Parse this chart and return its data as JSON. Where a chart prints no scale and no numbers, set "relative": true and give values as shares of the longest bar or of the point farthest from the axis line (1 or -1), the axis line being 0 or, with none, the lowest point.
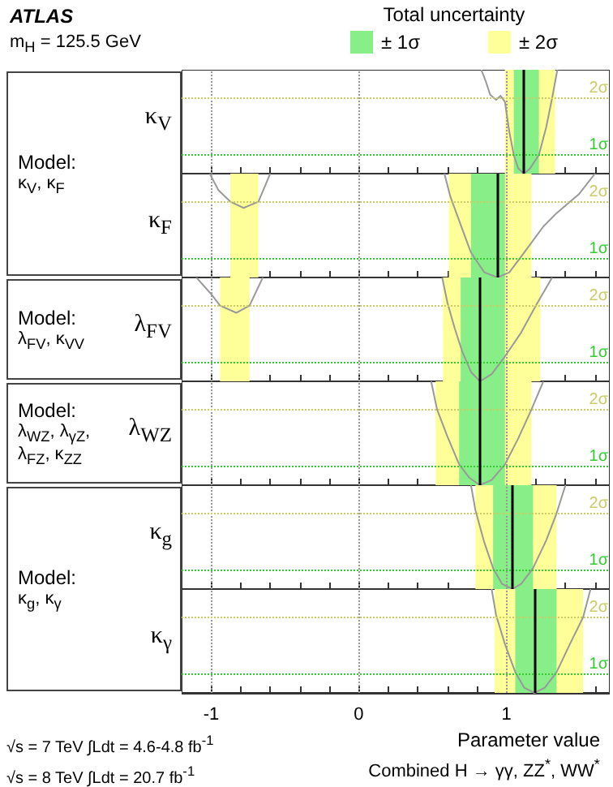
{
  "chart_data": [
    {
      "type": "line",
      "title": "ATLAS",
      "subtitle": "m$_{H}$ = 125.5 GeV",
      "legend_title": "Total uncertainty",
      "legend": "top",
      "ylabel": "κ$_{V}$",
      "annotations": [
        "Model:",
        "κ$_{V}$, κ$_{F}$"
      ],
      "color": "#999999",
      "marker": "none",
      "line_style": "solid",
      "relative": true,
      "x": [
        0.83,
        0.86,
        0.89,
        0.93,
        0.96,
        0.99,
        1.02,
        1.05,
        1.08,
        1.12,
        1.16,
        1.22,
        1.27,
        1.31,
        1.345
      ],
      "values": [
        1,
        0.89,
        0.76,
        0.71,
        0.75,
        0.69,
        0.4,
        0.18,
        0.05,
        0,
        0.05,
        0.18,
        0.45,
        0.73,
        1
      ],
      "xlim": [
        -1.2,
        1.7
      ],
      "xticks": [
        -1,
        {
          "value": -0.8,
          "label": null
        },
        {
          "value": -0.6,
          "label": null
        },
        {
          "value": -0.4,
          "label": null
        },
        {
          "value": -0.2,
          "label": null
        },
        0,
        {
          "value": 0.2,
          "label": null
        },
        {
          "value": 0.4,
          "label": null
        },
        {
          "value": 0.6,
          "label": null
        },
        {
          "value": 0.8,
          "label": null
        },
        1,
        {
          "value": 1.2,
          "label": null
        },
        {
          "value": 1.4,
          "label": null
        },
        {
          "value": 1.6,
          "label": null
        }
      ],
      "grid": "x",
      "tick_labels": false,
      "bands": [
        {
          "axis": "x",
          "from": 0.99,
          "to": 1.33,
          "color": "#ffff99",
          "label": "± 2σ"
        },
        {
          "axis": "x",
          "from": 1.05,
          "to": 1.22,
          "color": "#88ee88",
          "label": "± 1σ"
        }
      ],
      "ref_lines": [
        {
          "axis": "y",
          "value": 0.18,
          "label": "1σ",
          "color": "#33cc33",
          "line_style": "dotted"
        },
        {
          "axis": "y",
          "value": 0.73,
          "label": "2σ",
          "color": "#cccc66",
          "line_style": "dotted"
        },
        {
          "axis": "x",
          "value": 1.12,
          "color": "#000000",
          "line_style": "solid"
        }
      ]
    },
    {
      "type": "line",
      "ylabel": "κ$_{F}$",
      "color": "#999999",
      "marker": "none",
      "line_style": "solid",
      "relative": true,
      "x": [
        -1.01,
        -0.95,
        -0.87,
        -0.78,
        -0.68,
        -0.6,
        0,
        0.58,
        0.62,
        0.7,
        0.76,
        0.85,
        0.94,
        1.02,
        1.12,
        1.25,
        1.34,
        1.49,
        1.6
      ],
      "values": [
        1,
        0.84,
        0.73,
        0.67,
        0.73,
        1,
        null,
        1,
        0.78,
        0.47,
        0.24,
        0.05,
        0,
        0.05,
        0.24,
        0.49,
        0.62,
        0.8,
        1
      ],
      "xlim": [
        -1.2,
        1.7
      ],
      "xticks": [
        -1,
        {
          "value": -0.8,
          "label": null
        },
        {
          "value": -0.6,
          "label": null
        },
        {
          "value": -0.4,
          "label": null
        },
        {
          "value": -0.2,
          "label": null
        },
        0,
        {
          "value": 0.2,
          "label": null
        },
        {
          "value": 0.4,
          "label": null
        },
        {
          "value": 0.6,
          "label": null
        },
        {
          "value": 0.8,
          "label": null
        },
        1,
        {
          "value": 1.2,
          "label": null
        },
        {
          "value": 1.4,
          "label": null
        },
        {
          "value": 1.6,
          "label": null
        }
      ],
      "grid": "x",
      "tick_labels": false,
      "bands": [
        {
          "axis": "x",
          "from": -0.87,
          "to": -0.68,
          "color": "#ffff99"
        },
        {
          "axis": "x",
          "from": 0.61,
          "to": 1.17,
          "color": "#ffff99"
        },
        {
          "axis": "x",
          "from": 0.76,
          "to": 0.99,
          "color": "#88ee88"
        }
      ],
      "ref_lines": [
        {
          "axis": "y",
          "value": 0.18,
          "label": "1σ",
          "color": "#33cc33",
          "line_style": "dotted"
        },
        {
          "axis": "y",
          "value": 0.73,
          "label": "2σ",
          "color": "#cccc66",
          "line_style": "dotted"
        },
        {
          "axis": "x",
          "value": 0.94,
          "color": "#000000",
          "line_style": "solid"
        }
      ]
    },
    {
      "type": "line",
      "ylabel": "λ$_{FV}$",
      "annotations": [
        "Model:",
        "λ$_{FV}$, κ$_{VV}$"
      ],
      "color": "#999999",
      "marker": "none",
      "line_style": "solid",
      "relative": true,
      "x": [
        -1.1,
        -1.0,
        -0.94,
        -0.83,
        -0.74,
        -0.65,
        0,
        0.565,
        0.6,
        0.65,
        0.7,
        0.76,
        0.82,
        0.9,
        0.99,
        1.1,
        1.2,
        1.31
      ],
      "values": [
        1,
        0.84,
        0.73,
        0.66,
        0.73,
        1,
        null,
        1,
        0.76,
        0.51,
        0.29,
        0.09,
        0,
        0.07,
        0.24,
        0.47,
        0.73,
        1
      ],
      "xlim": [
        -1.2,
        1.7
      ],
      "xticks": [
        -1,
        {
          "value": -0.8,
          "label": null
        },
        {
          "value": -0.6,
          "label": null
        },
        {
          "value": -0.4,
          "label": null
        },
        {
          "value": -0.2,
          "label": null
        },
        0,
        {
          "value": 0.2,
          "label": null
        },
        {
          "value": 0.4,
          "label": null
        },
        {
          "value": 0.6,
          "label": null
        },
        {
          "value": 0.8,
          "label": null
        },
        1,
        {
          "value": 1.2,
          "label": null
        },
        {
          "value": 1.4,
          "label": null
        },
        {
          "value": 1.6,
          "label": null
        }
      ],
      "grid": "x",
      "tick_labels": false,
      "bands": [
        {
          "axis": "x",
          "from": -0.94,
          "to": -0.74,
          "color": "#ffff99"
        },
        {
          "axis": "x",
          "from": 0.57,
          "to": 1.23,
          "color": "#ffff99"
        },
        {
          "axis": "x",
          "from": 0.69,
          "to": 0.99,
          "color": "#88ee88"
        }
      ],
      "ref_lines": [
        {
          "axis": "y",
          "value": 0.18,
          "label": "1σ",
          "color": "#33cc33",
          "line_style": "dotted"
        },
        {
          "axis": "y",
          "value": 0.73,
          "label": "2σ",
          "color": "#cccc66",
          "line_style": "dotted"
        },
        {
          "axis": "x",
          "value": 0.82,
          "color": "#000000",
          "line_style": "solid"
        }
      ]
    },
    {
      "type": "line",
      "ylabel": "λ$_{WZ}$",
      "annotations": [
        "Model:",
        "λ$_{WZ}$, λ$_{γZ}$,",
        "λ$_{FZ}$, κ$_{ZZ}$"
      ],
      "color": "#999999",
      "marker": "none",
      "line_style": "solid",
      "relative": true,
      "x": [
        0.49,
        0.53,
        0.6,
        0.68,
        0.75,
        0.82,
        0.9,
        0.99,
        1.08,
        1.17,
        1.25
      ],
      "values": [
        1,
        0.73,
        0.47,
        0.2,
        0.07,
        0,
        0.05,
        0.2,
        0.45,
        0.73,
        1
      ],
      "xlim": [
        -1.2,
        1.7
      ],
      "xticks": [
        -1,
        {
          "value": -0.8,
          "label": null
        },
        {
          "value": -0.6,
          "label": null
        },
        {
          "value": -0.4,
          "label": null
        },
        {
          "value": -0.2,
          "label": null
        },
        0,
        {
          "value": 0.2,
          "label": null
        },
        {
          "value": 0.4,
          "label": null
        },
        {
          "value": 0.6,
          "label": null
        },
        {
          "value": 0.8,
          "label": null
        },
        1,
        {
          "value": 1.2,
          "label": null
        },
        {
          "value": 1.4,
          "label": null
        },
        {
          "value": 1.6,
          "label": null
        }
      ],
      "grid": "x",
      "tick_labels": false,
      "bands": [
        {
          "axis": "x",
          "from": 0.52,
          "to": 1.17,
          "color": "#ffff99"
        },
        {
          "axis": "x",
          "from": 0.68,
          "to": 0.99,
          "color": "#88ee88"
        }
      ],
      "ref_lines": [
        {
          "axis": "y",
          "value": 0.18,
          "label": "1σ",
          "color": "#33cc33",
          "line_style": "dotted"
        },
        {
          "axis": "y",
          "value": 0.73,
          "label": "2σ",
          "color": "#cccc66",
          "line_style": "dotted"
        },
        {
          "axis": "x",
          "value": 0.82,
          "color": "#000000",
          "line_style": "solid"
        }
      ]
    },
    {
      "type": "line",
      "ylabel": "κ$_{g}$",
      "annotations": [
        "Model:",
        "κ$_{g}$, κ$_{γ}$"
      ],
      "color": "#999999",
      "marker": "none",
      "line_style": "solid",
      "relative": true,
      "x": [
        0.76,
        0.79,
        0.85,
        0.91,
        0.97,
        1.04,
        1.1,
        1.18,
        1.27,
        1.34,
        1.4
      ],
      "values": [
        1,
        0.76,
        0.45,
        0.2,
        0.05,
        0,
        0.05,
        0.2,
        0.47,
        0.73,
        1
      ],
      "xlim": [
        -1.2,
        1.7
      ],
      "xticks": [
        -1,
        {
          "value": -0.8,
          "label": null
        },
        {
          "value": -0.6,
          "label": null
        },
        {
          "value": -0.4,
          "label": null
        },
        {
          "value": -0.2,
          "label": null
        },
        0,
        {
          "value": 0.2,
          "label": null
        },
        {
          "value": 0.4,
          "label": null
        },
        {
          "value": 0.6,
          "label": null
        },
        {
          "value": 0.8,
          "label": null
        },
        1,
        {
          "value": 1.2,
          "label": null
        },
        {
          "value": 1.4,
          "label": null
        },
        {
          "value": 1.6,
          "label": null
        }
      ],
      "grid": "x",
      "tick_labels": false,
      "bands": [
        {
          "axis": "x",
          "from": 0.79,
          "to": 1.34,
          "color": "#ffff99"
        },
        {
          "axis": "x",
          "from": 0.91,
          "to": 1.18,
          "color": "#88ee88"
        }
      ],
      "ref_lines": [
        {
          "axis": "y",
          "value": 0.18,
          "label": "1σ",
          "color": "#33cc33",
          "line_style": "dotted"
        },
        {
          "axis": "y",
          "value": 0.73,
          "label": "2σ",
          "color": "#cccc66",
          "line_style": "dotted"
        },
        {
          "axis": "x",
          "value": 1.04,
          "color": "#000000",
          "line_style": "solid"
        }
      ]
    },
    {
      "type": "line",
      "ylabel": "κ$_{γ}$",
      "xlabel": "Parameter value",
      "annotations": [
        "√s = 7 TeV ∫Ldt = 4.6-4.8 fb$^{-1}$",
        "√s = 8 TeV ∫Ldt = 20.7 fb$^{-1}$",
        "Combined H → γγ, ZZ$^{*}$, WW$^{*}$"
      ],
      "color": "#999999",
      "marker": "none",
      "line_style": "solid",
      "relative": true,
      "x": [
        0.9,
        0.93,
        0.99,
        1.06,
        1.12,
        1.19,
        1.26,
        1.34,
        1.43,
        1.52,
        1.57
      ],
      "values": [
        1,
        0.75,
        0.47,
        0.2,
        0.05,
        0,
        0.05,
        0.2,
        0.47,
        0.73,
        1
      ],
      "xlim": [
        -1.2,
        1.7
      ],
      "xticks": [
        -1,
        {
          "value": -0.8,
          "label": null
        },
        {
          "value": -0.6,
          "label": null
        },
        {
          "value": -0.4,
          "label": null
        },
        {
          "value": -0.2,
          "label": null
        },
        0,
        {
          "value": 0.2,
          "label": null
        },
        {
          "value": 0.4,
          "label": null
        },
        {
          "value": 0.6,
          "label": null
        },
        {
          "value": 0.8,
          "label": null
        },
        1,
        {
          "value": 1.2,
          "label": null
        },
        {
          "value": 1.4,
          "label": null
        },
        {
          "value": 1.6,
          "label": null
        }
      ],
      "grid": "x",
      "tick_labels": "x",
      "bands": [
        {
          "axis": "x",
          "from": 0.92,
          "to": 1.52,
          "color": "#ffff99"
        },
        {
          "axis": "x",
          "from": 1.06,
          "to": 1.34,
          "color": "#88ee88"
        }
      ],
      "ref_lines": [
        {
          "axis": "y",
          "value": 0.18,
          "label": "1σ",
          "color": "#33cc33",
          "line_style": "dotted"
        },
        {
          "axis": "y",
          "value": 0.73,
          "label": "2σ",
          "color": "#cccc66",
          "line_style": "dotted"
        },
        {
          "axis": "x",
          "value": 1.19,
          "color": "#000000",
          "line_style": "solid"
        }
      ]
    }
  ]
}
